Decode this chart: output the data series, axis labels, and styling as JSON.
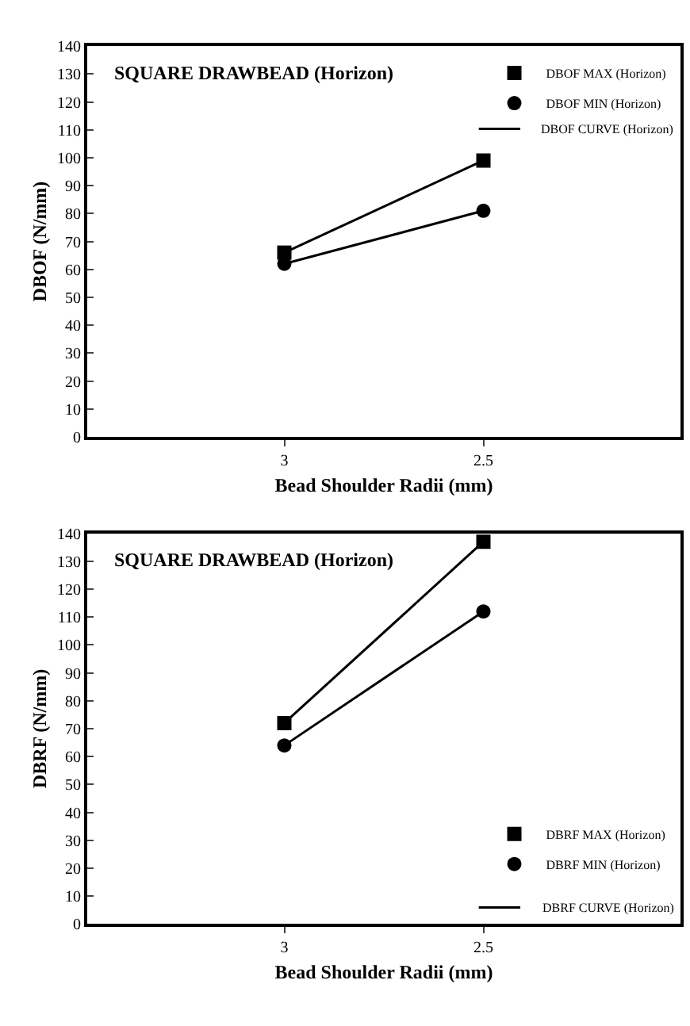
{
  "chart_data": [
    {
      "type": "line",
      "title": "SQUARE DRAWBEAD (Horizon)",
      "xlabel": "Bead Shoulder Radii (mm)",
      "ylabel": "DBOF (N/mm)",
      "categories": [
        "3",
        "2.5"
      ],
      "ylim": [
        0,
        140
      ],
      "yticks": [
        0,
        10,
        20,
        30,
        40,
        50,
        60,
        70,
        80,
        90,
        100,
        110,
        120,
        130,
        140
      ],
      "legend": "top right",
      "annotations": [
        "DBOF CURVE (Horizon)"
      ],
      "series": [
        {
          "name": "DBOF MAX (Horizon)",
          "marker": "square",
          "color": "#000000",
          "values": [
            66,
            99
          ]
        },
        {
          "name": "DBOF MIN (Horizon)",
          "marker": "circle",
          "color": "#000000",
          "values": [
            62,
            81
          ]
        }
      ]
    },
    {
      "type": "line",
      "title": "SQUARE DRAWBEAD (Horizon)",
      "xlabel": "Bead Shoulder Radii (mm)",
      "ylabel": "DBRF (N/mm)",
      "categories": [
        "3",
        "2.5"
      ],
      "ylim": [
        0,
        140
      ],
      "yticks": [
        0,
        10,
        20,
        30,
        40,
        50,
        60,
        70,
        80,
        90,
        100,
        110,
        120,
        130,
        140
      ],
      "legend": "bottom right",
      "annotations": [
        "DBRF CURVE (Horizon)"
      ],
      "series": [
        {
          "name": "DBRF MAX (Horizon)",
          "marker": "square",
          "color": "#000000",
          "values": [
            72,
            137
          ]
        },
        {
          "name": "DBRF MIN (Horizon)",
          "marker": "circle",
          "color": "#000000",
          "values": [
            64,
            112
          ]
        }
      ]
    }
  ]
}
